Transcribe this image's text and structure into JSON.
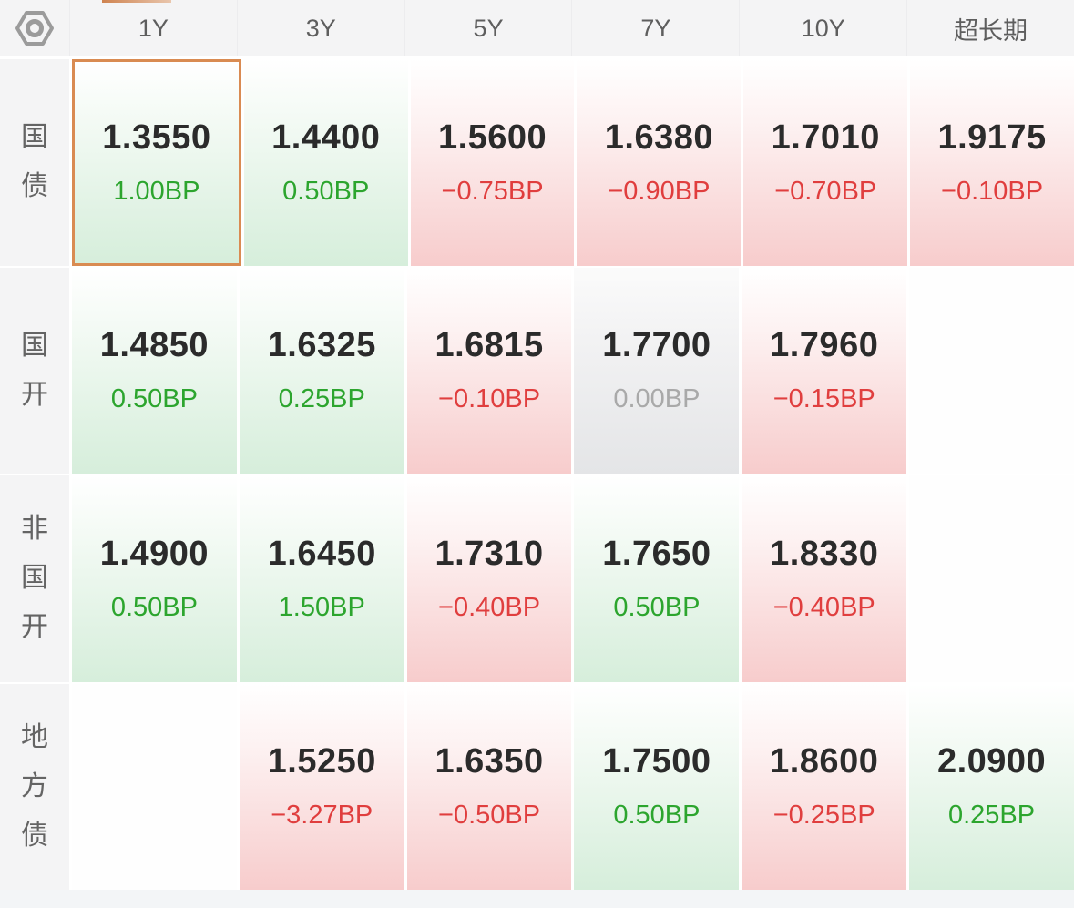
{
  "accent_colors": {
    "highlight_border": "#d98b52",
    "up_green": "#2ca52e",
    "down_red": "#e03e3e",
    "flat_gray": "#a9a9a9"
  },
  "header": {
    "settings_icon": "hex-nut-settings-icon",
    "columns": [
      "1Y",
      "3Y",
      "5Y",
      "7Y",
      "10Y",
      "超长期"
    ]
  },
  "table": {
    "rows": [
      {
        "label": "国债",
        "cells": [
          {
            "value": "1.3550",
            "change": "1.00BP",
            "trend": "up",
            "highlighted": true
          },
          {
            "value": "1.4400",
            "change": "0.50BP",
            "trend": "up"
          },
          {
            "value": "1.5600",
            "change": "−0.75BP",
            "trend": "down"
          },
          {
            "value": "1.6380",
            "change": "−0.90BP",
            "trend": "down"
          },
          {
            "value": "1.7010",
            "change": "−0.70BP",
            "trend": "down"
          },
          {
            "value": "1.9175",
            "change": "−0.10BP",
            "trend": "down"
          }
        ]
      },
      {
        "label": "国开",
        "cells": [
          {
            "value": "1.4850",
            "change": "0.50BP",
            "trend": "up"
          },
          {
            "value": "1.6325",
            "change": "0.25BP",
            "trend": "up"
          },
          {
            "value": "1.6815",
            "change": "−0.10BP",
            "trend": "down"
          },
          {
            "value": "1.7700",
            "change": "0.00BP",
            "trend": "flat"
          },
          {
            "value": "1.7960",
            "change": "−0.15BP",
            "trend": "down"
          },
          {
            "trend": "empty"
          }
        ]
      },
      {
        "label": "非国开",
        "cells": [
          {
            "value": "1.4900",
            "change": "0.50BP",
            "trend": "up"
          },
          {
            "value": "1.6450",
            "change": "1.50BP",
            "trend": "up"
          },
          {
            "value": "1.7310",
            "change": "−0.40BP",
            "trend": "down"
          },
          {
            "value": "1.7650",
            "change": "0.50BP",
            "trend": "up"
          },
          {
            "value": "1.8330",
            "change": "−0.40BP",
            "trend": "down"
          },
          {
            "trend": "empty"
          }
        ]
      },
      {
        "label": "地方债",
        "cells": [
          {
            "trend": "empty"
          },
          {
            "value": "1.5250",
            "change": "−3.27BP",
            "trend": "down"
          },
          {
            "value": "1.6350",
            "change": "−0.50BP",
            "trend": "down"
          },
          {
            "value": "1.7500",
            "change": "0.50BP",
            "trend": "up"
          },
          {
            "value": "1.8600",
            "change": "−0.25BP",
            "trend": "down"
          },
          {
            "value": "2.0900",
            "change": "0.25BP",
            "trend": "up"
          }
        ]
      }
    ]
  }
}
